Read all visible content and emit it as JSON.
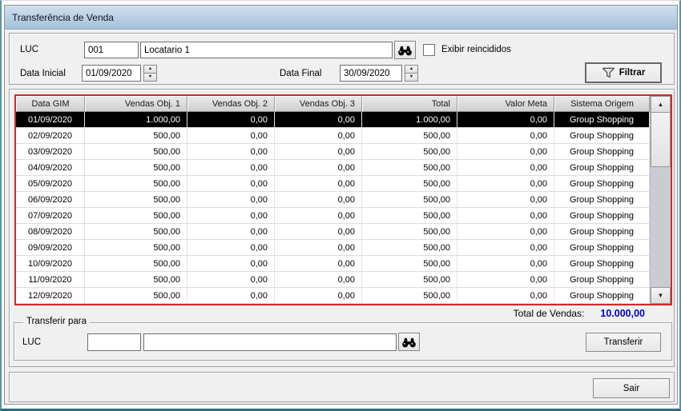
{
  "window": {
    "title": "Transferência de Venda"
  },
  "colors": {
    "grid_border": "#cc2b2b",
    "total_value": "#0000cc",
    "selected_row_bg": "#000000",
    "titlebar_top": "#cfe0ef",
    "titlebar_bottom": "#a5c1da"
  },
  "icons": {
    "spinner_up": "▲",
    "spinner_down": "▼",
    "scroll_up": "▲",
    "scroll_down": "▼"
  },
  "filters": {
    "luc_label": "LUC",
    "luc_code": "001",
    "luc_name": "Locatario 1",
    "exibir_label": "Exibir reincididos",
    "data_inicial_label": "Data Inicial",
    "data_inicial_value": "01/09/2020",
    "data_final_label": "Data Final",
    "data_final_value": "30/09/2020",
    "filtrar_label": "Filtrar"
  },
  "table": {
    "columns": [
      "Data GIM",
      "Vendas Obj. 1",
      "Vendas Obj. 2",
      "Vendas Obj. 3",
      "Total",
      "Valor Meta",
      "Sistema Origem"
    ],
    "rows": [
      {
        "selected": true,
        "cells": [
          "01/09/2020",
          "1.000,00",
          "0,00",
          "0,00",
          "1.000,00",
          "0,00",
          "Group Shopping"
        ]
      },
      {
        "selected": false,
        "cells": [
          "02/09/2020",
          "500,00",
          "0,00",
          "0,00",
          "500,00",
          "0,00",
          "Group Shopping"
        ]
      },
      {
        "selected": false,
        "cells": [
          "03/09/2020",
          "500,00",
          "0,00",
          "0,00",
          "500,00",
          "0,00",
          "Group Shopping"
        ]
      },
      {
        "selected": false,
        "cells": [
          "04/09/2020",
          "500,00",
          "0,00",
          "0,00",
          "500,00",
          "0,00",
          "Group Shopping"
        ]
      },
      {
        "selected": false,
        "cells": [
          "05/09/2020",
          "500,00",
          "0,00",
          "0,00",
          "500,00",
          "0,00",
          "Group Shopping"
        ]
      },
      {
        "selected": false,
        "cells": [
          "06/09/2020",
          "500,00",
          "0,00",
          "0,00",
          "500,00",
          "0,00",
          "Group Shopping"
        ]
      },
      {
        "selected": false,
        "cells": [
          "07/09/2020",
          "500,00",
          "0,00",
          "0,00",
          "500,00",
          "0,00",
          "Group Shopping"
        ]
      },
      {
        "selected": false,
        "cells": [
          "08/09/2020",
          "500,00",
          "0,00",
          "0,00",
          "500,00",
          "0,00",
          "Group Shopping"
        ]
      },
      {
        "selected": false,
        "cells": [
          "09/09/2020",
          "500,00",
          "0,00",
          "0,00",
          "500,00",
          "0,00",
          "Group Shopping"
        ]
      },
      {
        "selected": false,
        "cells": [
          "10/09/2020",
          "500,00",
          "0,00",
          "0,00",
          "500,00",
          "0,00",
          "Group Shopping"
        ]
      },
      {
        "selected": false,
        "cells": [
          "11/09/2020",
          "500,00",
          "0,00",
          "0,00",
          "500,00",
          "0,00",
          "Group Shopping"
        ]
      },
      {
        "selected": false,
        "cells": [
          "12/09/2020",
          "500,00",
          "0,00",
          "0,00",
          "500,00",
          "0,00",
          "Group Shopping"
        ]
      }
    ]
  },
  "summary": {
    "total_label": "Total de Vendas:",
    "total_value": "10.000,00"
  },
  "transfer": {
    "group_label": "Transferir para",
    "luc_label": "LUC",
    "luc_code": "",
    "luc_name": "",
    "transferir_label": "Transferir"
  },
  "footer": {
    "sair_label": "Sair"
  }
}
